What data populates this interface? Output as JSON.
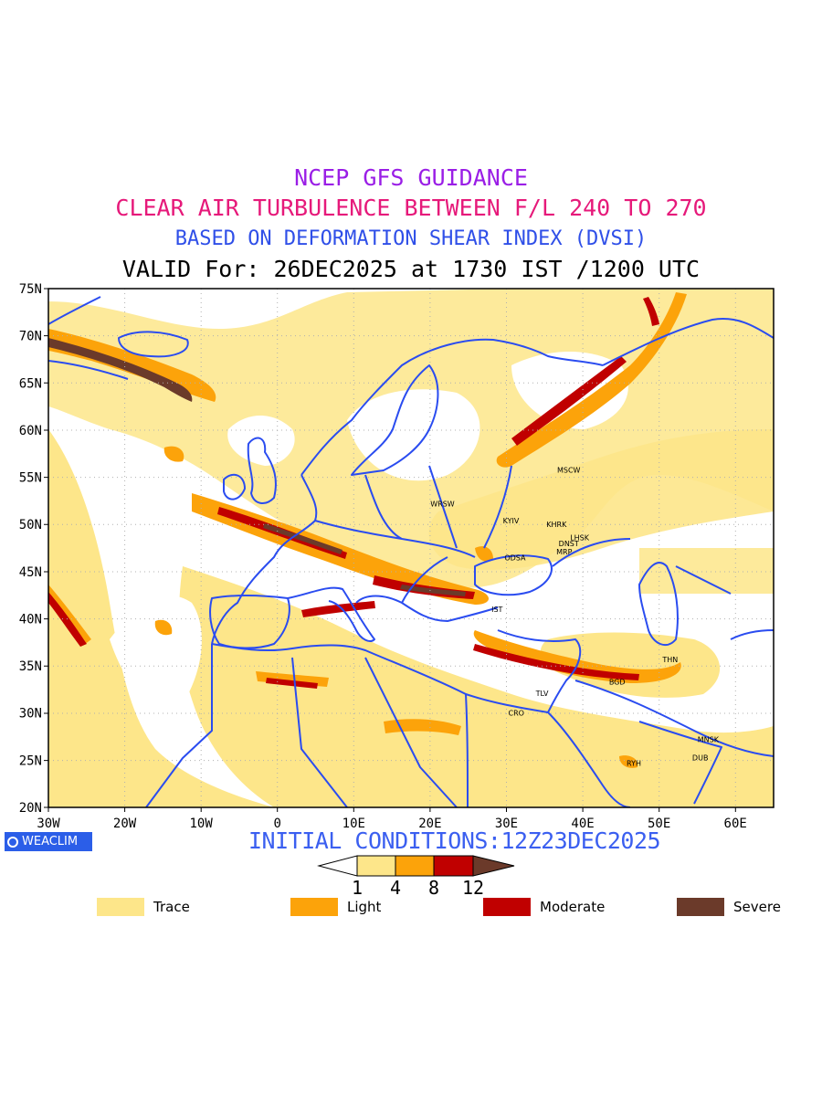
{
  "titles": {
    "line1": "NCEP GFS GUIDANCE",
    "line2": "CLEAR AIR TURBULENCE BETWEEN F/L 240 TO 270",
    "line3": "BASED ON DEFORMATION SHEAR INDEX (DVSI)",
    "line4": "VALID For: 26DEC2025 at 1730 IST /1200 UTC"
  },
  "colors": {
    "line1": "#9a1ee6",
    "line2": "#e6197a",
    "line3": "#2f4fe8",
    "border": "#2a4cf0",
    "trace": "#fde68a",
    "light": "#fca30a",
    "moderate": "#c00000",
    "severe": "#6b3a2a"
  },
  "map": {
    "lat_ticks": [
      "75N",
      "70N",
      "65N",
      "60N",
      "55N",
      "50N",
      "45N",
      "40N",
      "35N",
      "30N",
      "25N",
      "20N"
    ],
    "lon_ticks": [
      "30W",
      "20W",
      "10W",
      "0",
      "10E",
      "20E",
      "30E",
      "40E",
      "50E",
      "60E"
    ],
    "cities": [
      {
        "name": "MSCW",
        "lon": 37.6,
        "lat": 55.8
      },
      {
        "name": "WRSW",
        "lon": 21.0,
        "lat": 52.2
      },
      {
        "name": "KYIV",
        "lon": 30.5,
        "lat": 50.4
      },
      {
        "name": "KHRK",
        "lon": 36.2,
        "lat": 50.0
      },
      {
        "name": "LHSK",
        "lon": 39.3,
        "lat": 48.6
      },
      {
        "name": "DNST",
        "lon": 37.8,
        "lat": 48.0
      },
      {
        "name": "MRP",
        "lon": 37.5,
        "lat": 47.1
      },
      {
        "name": "ODSA",
        "lon": 30.7,
        "lat": 46.5
      },
      {
        "name": "IST",
        "lon": 29.0,
        "lat": 41.0
      },
      {
        "name": "THN",
        "lon": 51.4,
        "lat": 35.7
      },
      {
        "name": "BGD",
        "lon": 44.4,
        "lat": 33.3
      },
      {
        "name": "TLV",
        "lon": 34.8,
        "lat": 32.1
      },
      {
        "name": "CRO",
        "lon": 31.2,
        "lat": 30.0
      },
      {
        "name": "MNSK",
        "lon": 56.0,
        "lat": 27.2
      },
      {
        "name": "DUB",
        "lon": 55.3,
        "lat": 25.3
      },
      {
        "name": "RYH",
        "lon": 46.7,
        "lat": 24.7
      }
    ]
  },
  "footer": {
    "logo": "WEACLIM",
    "initial_conditions": "INITIAL CONDITIONS:12Z23DEC2025"
  },
  "colorbar": {
    "ticks": [
      "1",
      "4",
      "8",
      "12"
    ]
  },
  "legend": [
    {
      "label": "Trace",
      "color": "#fde68a"
    },
    {
      "label": "Light",
      "color": "#fca30a"
    },
    {
      "label": "Moderate",
      "color": "#c00000"
    },
    {
      "label": "Severe",
      "color": "#6b3a2a"
    }
  ]
}
